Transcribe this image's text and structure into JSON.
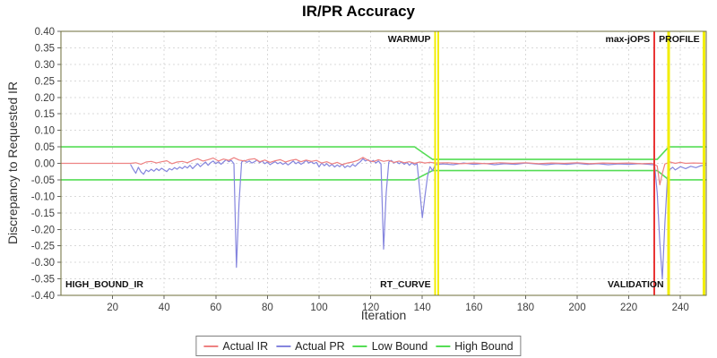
{
  "chart_data": {
    "type": "line",
    "title": "IR/PR Accuracy",
    "xlabel": "Iteration",
    "ylabel": "Discrepancy to Requested IR",
    "xlim": [
      0,
      250
    ],
    "ylim": [
      -0.4,
      0.4
    ],
    "x_ticks": [
      20,
      40,
      60,
      80,
      100,
      120,
      140,
      160,
      180,
      200,
      220,
      240
    ],
    "y_tick_step": 0.05,
    "grid": true,
    "legend_position": "bottom",
    "series": [
      {
        "name": "Actual IR",
        "color": "#ee8282",
        "points": [
          [
            0,
            0
          ],
          [
            27,
            0
          ],
          [
            29,
            0.002
          ],
          [
            31,
            -0.003
          ],
          [
            33,
            0.004
          ],
          [
            35,
            0.006
          ],
          [
            37,
            0.001
          ],
          [
            39,
            0.005
          ],
          [
            41,
            0.008
          ],
          [
            43,
            -0.001
          ],
          [
            45,
            0.004
          ],
          [
            47,
            0.006
          ],
          [
            49,
            0.002
          ],
          [
            51,
            0.009
          ],
          [
            53,
            0.014
          ],
          [
            55,
            0.007
          ],
          [
            57,
            0.011
          ],
          [
            59,
            0.016
          ],
          [
            61,
            0.007
          ],
          [
            63,
            0.013
          ],
          [
            65,
            0.009
          ],
          [
            67,
            0.017
          ],
          [
            69,
            0.01
          ],
          [
            71,
            0.007
          ],
          [
            73,
            0.012
          ],
          [
            75,
            0.014
          ],
          [
            77,
            0.005
          ],
          [
            79,
            0.01
          ],
          [
            81,
            0.003
          ],
          [
            83,
            0.008
          ],
          [
            85,
            0.011
          ],
          [
            87,
            0.004
          ],
          [
            89,
            0.009
          ],
          [
            91,
            0.012
          ],
          [
            93,
            0.005
          ],
          [
            95,
            0.01
          ],
          [
            97,
            0.006
          ],
          [
            99,
            0.009
          ],
          [
            101,
            0.001
          ],
          [
            103,
            0.005
          ],
          [
            105,
            -0.002
          ],
          [
            107,
            0.003
          ],
          [
            109,
            -0.004
          ],
          [
            111,
            0.001
          ],
          [
            113,
            0.004
          ],
          [
            115,
            0.009
          ],
          [
            117,
            0.018
          ],
          [
            119,
            0.009
          ],
          [
            121,
            0.005
          ],
          [
            123,
            0.011
          ],
          [
            125,
            0.006
          ],
          [
            127,
            0.009
          ],
          [
            129,
            0.003
          ],
          [
            131,
            0.007
          ],
          [
            133,
            0.002
          ],
          [
            135,
            0.005
          ],
          [
            137,
            0
          ],
          [
            139,
            0.004
          ],
          [
            141,
            0.001
          ],
          [
            143,
            0.003
          ],
          [
            145,
            0.001
          ],
          [
            150,
            0.002
          ],
          [
            155,
            -0.001
          ],
          [
            160,
            0.001
          ],
          [
            165,
            -0.001
          ],
          [
            170,
            0.002
          ],
          [
            175,
            0
          ],
          [
            180,
            0.002
          ],
          [
            185,
            -0.001
          ],
          [
            190,
            0.001
          ],
          [
            195,
            0
          ],
          [
            200,
            0.002
          ],
          [
            205,
            -0.001
          ],
          [
            210,
            0.001
          ],
          [
            215,
            0
          ],
          [
            220,
            0.001
          ],
          [
            225,
            -0.001
          ],
          [
            229,
            0
          ],
          [
            231,
            -0.008
          ],
          [
            232,
            -0.065
          ],
          [
            233,
            -0.03
          ],
          [
            234,
            -0.002
          ],
          [
            236,
            0.004
          ],
          [
            238,
            0
          ],
          [
            240,
            0.003
          ],
          [
            242,
            0
          ],
          [
            245,
            0.001
          ],
          [
            250,
            0
          ]
        ]
      },
      {
        "name": "Actual PR",
        "color": "#8585de",
        "points": [
          [
            27,
            -0.004
          ],
          [
            28,
            -0.018
          ],
          [
            29,
            -0.03
          ],
          [
            30,
            -0.012
          ],
          [
            31,
            -0.026
          ],
          [
            32,
            -0.033
          ],
          [
            33,
            -0.02
          ],
          [
            34,
            -0.025
          ],
          [
            35,
            -0.018
          ],
          [
            36,
            -0.024
          ],
          [
            37,
            -0.016
          ],
          [
            38,
            -0.022
          ],
          [
            39,
            -0.015
          ],
          [
            40,
            -0.02
          ],
          [
            41,
            -0.025
          ],
          [
            42,
            -0.016
          ],
          [
            43,
            -0.02
          ],
          [
            44,
            -0.013
          ],
          [
            45,
            -0.018
          ],
          [
            46,
            -0.011
          ],
          [
            47,
            -0.016
          ],
          [
            48,
            -0.009
          ],
          [
            49,
            -0.014
          ],
          [
            50,
            -0.006
          ],
          [
            51,
            -0.016
          ],
          [
            52,
            -0.008
          ],
          [
            53,
            -0.001
          ],
          [
            54,
            -0.01
          ],
          [
            55,
            -0.003
          ],
          [
            56,
            0.004
          ],
          [
            57,
            -0.006
          ],
          [
            58,
            0.002
          ],
          [
            59,
            0.007
          ],
          [
            60,
            -0.001
          ],
          [
            61,
            0.005
          ],
          [
            62,
            -0.003
          ],
          [
            63,
            0.004
          ],
          [
            64,
            0.011
          ],
          [
            65,
            0.005
          ],
          [
            66,
            0.009
          ],
          [
            67,
            -0.001
          ],
          [
            68,
            -0.315
          ],
          [
            69,
            -0.12
          ],
          [
            70,
            0.004
          ],
          [
            71,
            0.009
          ],
          [
            72,
            0.003
          ],
          [
            73,
            0.007
          ],
          [
            74,
            0.001
          ],
          [
            75,
            0.005
          ],
          [
            76,
            0.01
          ],
          [
            77,
            0.002
          ],
          [
            78,
            0.007
          ],
          [
            79,
            -0.001
          ],
          [
            80,
            0.004
          ],
          [
            81,
            -0.004
          ],
          [
            82,
            0.001
          ],
          [
            83,
            0.005
          ],
          [
            84,
            -0.001
          ],
          [
            85,
            0.003
          ],
          [
            86,
            -0.003
          ],
          [
            87,
            0.002
          ],
          [
            88,
            -0.005
          ],
          [
            89,
            0.001
          ],
          [
            90,
            0.007
          ],
          [
            91,
            -0.001
          ],
          [
            92,
            0.004
          ],
          [
            93,
            -0.003
          ],
          [
            94,
            0.002
          ],
          [
            95,
            0.009
          ],
          [
            96,
            0.001
          ],
          [
            97,
            0.005
          ],
          [
            98,
            -0.001
          ],
          [
            99,
            0.003
          ],
          [
            100,
            -0.011
          ],
          [
            101,
            0.001
          ],
          [
            102,
            -0.007
          ],
          [
            103,
            -0.001
          ],
          [
            104,
            -0.009
          ],
          [
            105,
            -0.003
          ],
          [
            106,
            -0.011
          ],
          [
            107,
            -0.005
          ],
          [
            108,
            -0.01
          ],
          [
            109,
            -0.003
          ],
          [
            110,
            -0.013
          ],
          [
            111,
            -0.007
          ],
          [
            112,
            -0.011
          ],
          [
            113,
            -0.003
          ],
          [
            114,
            -0.009
          ],
          [
            115,
            -0.001
          ],
          [
            116,
            0.005
          ],
          [
            117,
            0.014
          ],
          [
            118,
            0.007
          ],
          [
            119,
            0.011
          ],
          [
            120,
            0.004
          ],
          [
            121,
            0.009
          ],
          [
            122,
            0.001
          ],
          [
            123,
            0.007
          ],
          [
            124,
            -0.002
          ],
          [
            125,
            -0.26
          ],
          [
            126,
            -0.09
          ],
          [
            127,
            0.004
          ],
          [
            128,
            0.009
          ],
          [
            129,
            0.001
          ],
          [
            130,
            0.005
          ],
          [
            131,
            -0.001
          ],
          [
            132,
            0.004
          ],
          [
            133,
            -0.003
          ],
          [
            134,
            0.003
          ],
          [
            135,
            -0.006
          ],
          [
            136,
            0.001
          ],
          [
            137,
            -0.005
          ],
          [
            138,
            -0.001
          ],
          [
            139,
            -0.08
          ],
          [
            140,
            -0.165
          ],
          [
            141,
            -0.1
          ],
          [
            142,
            -0.04
          ],
          [
            143,
            -0.01
          ],
          [
            144,
            -0.022
          ],
          [
            145,
            -0.004
          ],
          [
            148,
            -0.002
          ],
          [
            152,
            -0.004
          ],
          [
            156,
            0.001
          ],
          [
            160,
            -0.003
          ],
          [
            164,
            0
          ],
          [
            168,
            -0.004
          ],
          [
            172,
            -0.001
          ],
          [
            176,
            -0.003
          ],
          [
            180,
            0.001
          ],
          [
            184,
            -0.002
          ],
          [
            188,
            -0.004
          ],
          [
            192,
            -0.001
          ],
          [
            196,
            -0.003
          ],
          [
            200,
            0
          ],
          [
            204,
            -0.003
          ],
          [
            208,
            -0.001
          ],
          [
            212,
            -0.004
          ],
          [
            216,
            -0.002
          ],
          [
            220,
            -0.003
          ],
          [
            224,
            -0.001
          ],
          [
            228,
            -0.003
          ],
          [
            230,
            -0.005
          ],
          [
            231,
            -0.09
          ],
          [
            232,
            -0.24
          ],
          [
            233,
            -0.35
          ],
          [
            234,
            -0.18
          ],
          [
            235,
            -0.04
          ],
          [
            236,
            -0.018
          ],
          [
            237,
            -0.012
          ],
          [
            238,
            -0.02
          ],
          [
            240,
            -0.01
          ],
          [
            242,
            -0.016
          ],
          [
            244,
            -0.009
          ],
          [
            246,
            -0.013
          ],
          [
            248,
            -0.007
          ],
          [
            250,
            -0.005
          ]
        ]
      },
      {
        "name": "Low Bound",
        "color": "#55dd55",
        "points": [
          [
            0,
            -0.05
          ],
          [
            137,
            -0.05
          ],
          [
            144,
            -0.022
          ],
          [
            231,
            -0.022
          ],
          [
            235.5,
            -0.05
          ],
          [
            250,
            -0.05
          ]
        ]
      },
      {
        "name": "High Bound",
        "color": "#55dd55",
        "points": [
          [
            0,
            0.05
          ],
          [
            137,
            0.05
          ],
          [
            144,
            0.012
          ],
          [
            231,
            0.012
          ],
          [
            235.5,
            0.05
          ],
          [
            250,
            0.05
          ]
        ]
      }
    ],
    "phase_lines": [
      {
        "x": 144.9,
        "color": "#f2ee00",
        "width": 2
      },
      {
        "x": 146.1,
        "color": "#f2ee00",
        "width": 2
      },
      {
        "x": 229.8,
        "color": "#e93535",
        "width": 2
      },
      {
        "x": 235.4,
        "color": "#f2ee00",
        "width": 3
      },
      {
        "x": 249.2,
        "color": "#f2ee00",
        "width": 3
      }
    ],
    "phase_labels": [
      {
        "text": "WARMUP",
        "x": 144.3,
        "anchor": "end",
        "pos": "top"
      },
      {
        "text": "max-jOPS",
        "x": 229.2,
        "anchor": "end",
        "pos": "top"
      },
      {
        "text": "PROFILE",
        "x": 248.5,
        "anchor": "end",
        "pos": "top"
      },
      {
        "text": "HIGH_BOUND_IR",
        "x": 0.7,
        "anchor": "start",
        "pos": "bottom"
      },
      {
        "text": "RT_CURVE",
        "x": 144.3,
        "anchor": "end",
        "pos": "bottom"
      },
      {
        "text": "VALIDATION",
        "x": 234.6,
        "anchor": "end",
        "pos": "bottom"
      }
    ],
    "colors": {
      "plot_border": "#6e6e38",
      "grid": "#d9d9d9",
      "tick": "#666666",
      "tick_label": "#3d3d3d"
    }
  }
}
